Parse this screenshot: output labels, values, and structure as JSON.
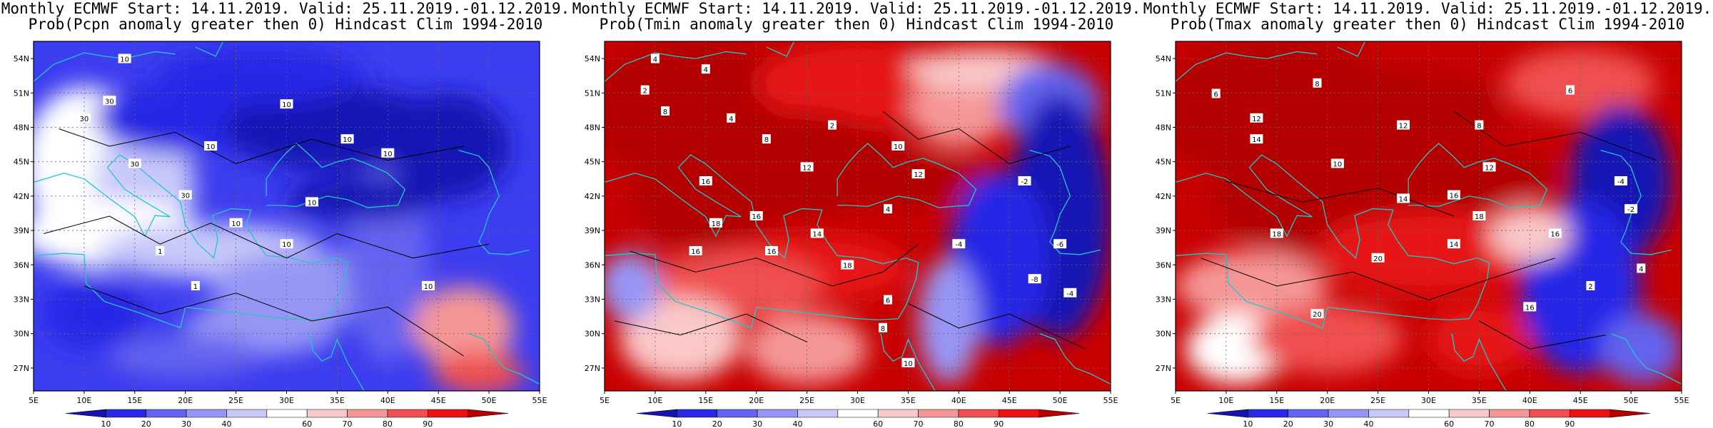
{
  "panels": [
    {
      "title1": "Monthly ECMWF Start: 14.11.2019. Valid: 25.11.2019.-01.12.2019.",
      "title2": "Prob(Pcpn anomaly greater then 0) Hindcast Clim 1994-2010",
      "variable": "Pcpn",
      "dominant_color": "#3c3cf0",
      "contour_labels": [
        "10",
        "30",
        "30",
        "30",
        "10",
        "10",
        "10",
        "10",
        "10",
        "30",
        "1",
        "10",
        "1",
        "10",
        "10"
      ]
    },
    {
      "title1": "Monthly ECMWF Start: 14.11.2019. Valid: 25.11.2019.-01.12.2019.",
      "title2": "Prob(Tmin anomaly greater then 0) Hindcast Clim 1994-2010",
      "variable": "Tmin",
      "dominant_color": "#c80000",
      "contour_labels": [
        "4",
        "4",
        "2",
        "8",
        "4",
        "16",
        "8",
        "2",
        "10",
        "12",
        "12",
        "16",
        "14",
        "18",
        "16",
        "18",
        "16",
        "-4",
        "-2",
        "-8",
        "-6",
        "-4",
        "4",
        "6",
        "8",
        "10"
      ]
    },
    {
      "title1": "Monthly ECMWF Start: 14.11.2019. Valid: 25.11.2019.-01.12.2019.",
      "title2": "Prob(Tmax anomaly greater then 0) Hindcast Clim 1994-2010",
      "variable": "Tmax",
      "dominant_color": "#c80000",
      "contour_labels": [
        "6",
        "8",
        "12",
        "14",
        "12",
        "10",
        "14",
        "16",
        "18",
        "18",
        "20",
        "20",
        "14",
        "12",
        "16",
        "16",
        "-2",
        "-4",
        "4",
        "2",
        "6",
        "8"
      ]
    }
  ],
  "axes": {
    "lat_labels": [
      "54N",
      "51N",
      "48N",
      "45N",
      "42N",
      "39N",
      "36N",
      "33N",
      "30N",
      "27N"
    ],
    "lon_labels": [
      "5E",
      "10E",
      "15E",
      "20E",
      "25E",
      "30E",
      "35E",
      "40E",
      "45E",
      "50E",
      "55E"
    ]
  },
  "colorbar": {
    "labels": [
      "10",
      "20",
      "30",
      "40",
      "60",
      "70",
      "80",
      "90"
    ],
    "colors": [
      "#1414b4",
      "#2828e6",
      "#6464f0",
      "#9696f5",
      "#c8c8fa",
      "#ffffff",
      "#fac8c8",
      "#f59696",
      "#f05050",
      "#e61414",
      "#b40000"
    ]
  }
}
